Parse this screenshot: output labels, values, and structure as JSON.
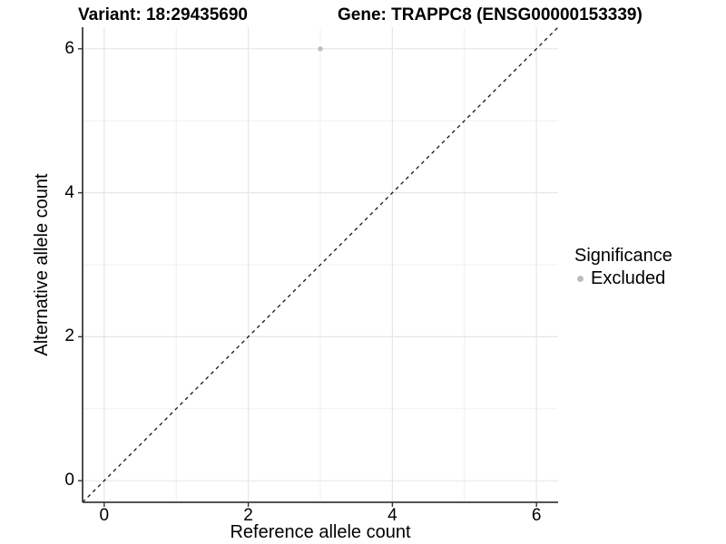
{
  "titles": {
    "variant": "Variant: 18:29435690",
    "gene": "Gene: TRAPPC8 (ENSG00000153339)"
  },
  "chart_data": {
    "type": "scatter",
    "title_left": "Variant: 18:29435690",
    "title_right": "Gene: TRAPPC8 (ENSG00000153339)",
    "xlabel": "Reference allele count",
    "ylabel": "Alternative allele count",
    "xlim": [
      -0.3,
      6.3
    ],
    "ylim": [
      -0.3,
      6.3
    ],
    "x_major_ticks": [
      0,
      2,
      4,
      6
    ],
    "y_major_ticks": [
      0,
      2,
      4,
      6
    ],
    "x_minor_ticks": [
      1,
      3,
      5
    ],
    "y_minor_ticks": [
      1,
      3,
      5
    ],
    "grid": true,
    "series": [
      {
        "name": "Excluded",
        "color": "#bdbdbd",
        "points": [
          {
            "x": 3,
            "y": 6
          }
        ]
      }
    ],
    "reference_line": {
      "type": "identity",
      "from": [
        -0.3,
        -0.3
      ],
      "to": [
        6.3,
        6.3
      ],
      "style": "dashed",
      "color": "#141414"
    },
    "colors": {
      "grid_major": "#e6e6e6",
      "grid_minor": "#f0f0f0",
      "axis_line": "#3c3c3c",
      "tick_mark": "#333333",
      "text": "#000000",
      "point": "#bdbdbd"
    }
  },
  "legend": {
    "title": "Significance",
    "position": "right",
    "items": [
      {
        "label": "Excluded",
        "color": "#bdbdbd"
      }
    ]
  }
}
